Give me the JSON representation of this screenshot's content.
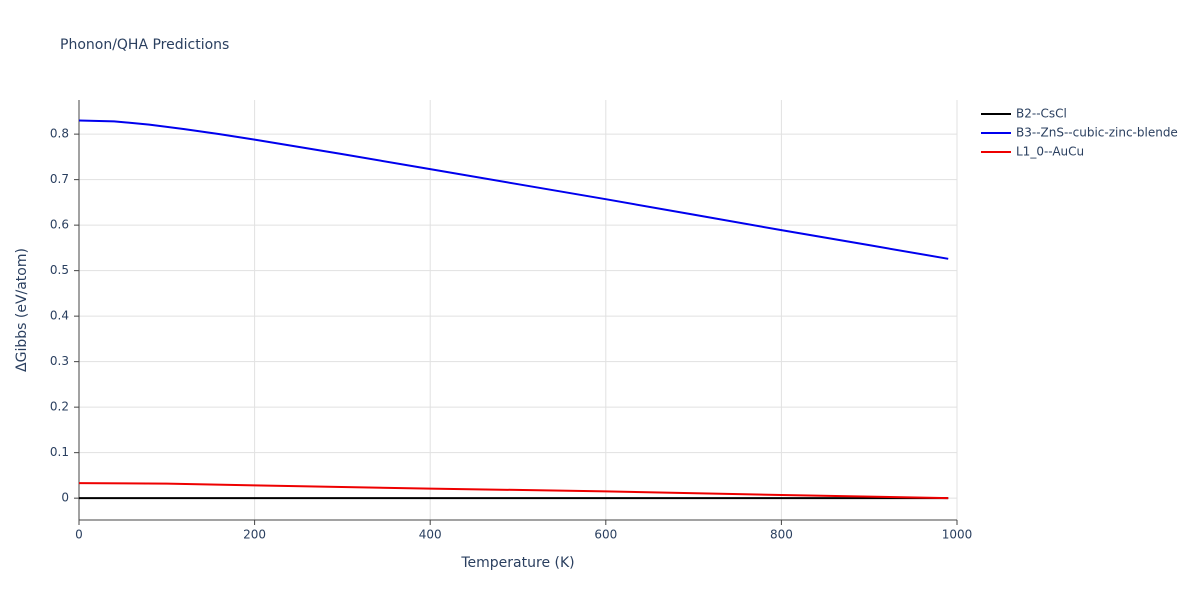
{
  "chart_data": {
    "type": "line",
    "title": "Phonon/QHA Predictions",
    "x_label": "Temperature (K)",
    "y_label": "ΔGibbs (eV/atom)",
    "xlim": [
      0,
      1000
    ],
    "xticks": [
      0,
      200,
      400,
      600,
      800,
      1000
    ],
    "ylim": [
      -0.048,
      0.875
    ],
    "yticks": [
      0,
      0.1,
      0.2,
      0.3,
      0.4,
      0.5,
      0.6,
      0.7,
      0.8
    ],
    "grid": true,
    "legend": "right",
    "series": [
      {
        "name": "B2--CsCl",
        "color": "#000000",
        "x": [
          0,
          990
        ],
        "values": [
          0,
          0
        ]
      },
      {
        "name": "B3--ZnS--cubic-zinc-blende",
        "color": "#0000ee",
        "x": [
          0,
          40,
          80,
          120,
          160,
          200,
          300,
          400,
          500,
          600,
          700,
          800,
          900,
          990
        ],
        "values": [
          0.83,
          0.828,
          0.821,
          0.811,
          0.8,
          0.788,
          0.756,
          0.723,
          0.69,
          0.657,
          0.623,
          0.589,
          0.556,
          0.526
        ]
      },
      {
        "name": "L1_0--AuCu",
        "color": "#ee0000",
        "x": [
          0,
          100,
          200,
          400,
          600,
          800,
          990
        ],
        "values": [
          0.033,
          0.032,
          0.028,
          0.021,
          0.015,
          0.007,
          0.0
        ]
      }
    ]
  }
}
